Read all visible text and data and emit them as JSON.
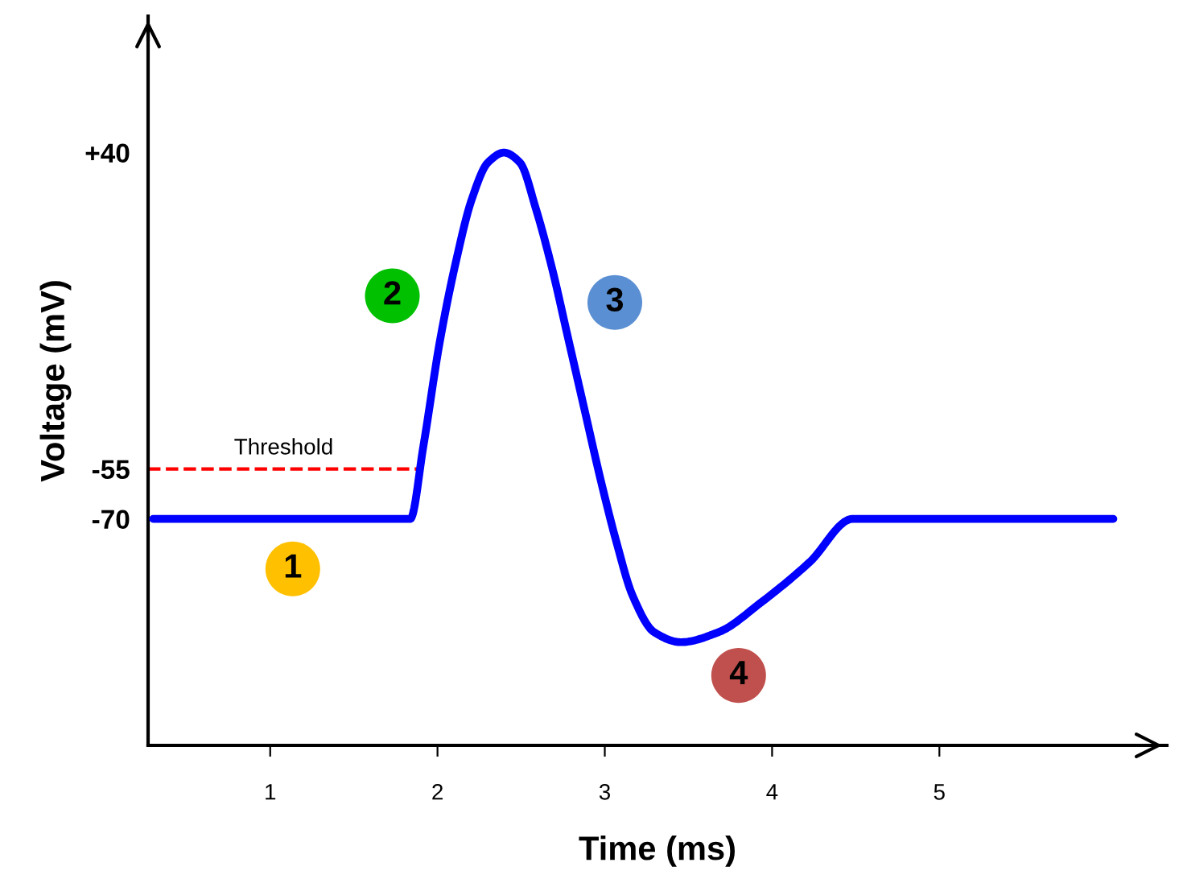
{
  "chart_data": {
    "type": "line",
    "xlabel": "Time (ms)",
    "ylabel": "Voltage (mV)",
    "x": [
      0.3,
      1.837,
      1.916,
      2.013,
      2.109,
      2.205,
      2.301,
      2.397,
      2.493,
      2.589,
      2.686,
      2.782,
      2.878,
      2.974,
      3.07,
      3.166,
      3.295,
      3.455,
      3.68,
      3.936,
      4.224,
      4.481,
      6.04
    ],
    "series": [
      {
        "color": "#0000ff",
        "values": [
          -70,
          -70,
          -48,
          -17,
          7,
          26,
          37,
          40,
          37,
          23,
          5,
          -16,
          -37,
          -58,
          -77,
          -93,
          -104,
          -107,
          -104,
          -95,
          -83,
          -70,
          -70
        ]
      }
    ],
    "xlim": [
      0.27,
      6.36
    ],
    "ylim": [
      -138,
      81
    ],
    "xticks": [
      1,
      2,
      3,
      4,
      5
    ],
    "yticks": [
      {
        "value": 40,
        "label": "+40"
      },
      -55,
      -70
    ],
    "ref_lines": [
      {
        "axis": "y",
        "value": -55,
        "label": "Threshold",
        "color": "#ff0000",
        "line_style": "dashed"
      }
    ],
    "annotations": [
      {
        "text": "1",
        "x": 1.135,
        "y": -85
      },
      {
        "text": "2",
        "x": 1.73,
        "y": -3
      },
      {
        "text": "3",
        "x": 3.06,
        "y": -5
      },
      {
        "text": "4",
        "x": 3.8,
        "y": -117
      }
    ],
    "grid": false,
    "legend": false,
    "marker": "none",
    "line_style": "solid"
  }
}
